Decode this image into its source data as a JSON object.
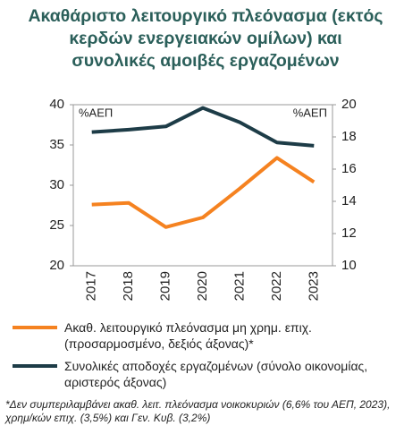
{
  "chart_data": {
    "type": "line",
    "title": "Ακαθάριστο λειτουργικό πλεόνασμα (εκτός κερδών ενεργειακών ομίλων) και συνολικές αμοιβές εργαζομένων",
    "y_label": "%ΑΕΠ",
    "y2_label": "%ΑΕΠ",
    "categories": [
      "2017",
      "2018",
      "2019",
      "2020",
      "2021",
      "2022",
      "2023"
    ],
    "series": [
      {
        "name": "Ακαθ. λειτουργικό πλεόνασμα μη χρημ. επιχ. (προσαρμοσμένο, δεξιός άξονας)*",
        "color": "#f58220",
        "axis": "y2",
        "values": [
          13.8,
          13.9,
          12.4,
          13.0,
          14.8,
          16.7,
          15.2
        ]
      },
      {
        "name": "Συνολικές αποδοχές εργαζομένων (σύνολο οικονομίας, αριστερός άξονας)",
        "color": "#1d3c47",
        "values": [
          36.6,
          36.9,
          37.3,
          39.6,
          37.8,
          35.3,
          34.9
        ]
      }
    ],
    "ylim": [
      20,
      40
    ],
    "yticks": [
      20,
      25,
      30,
      35,
      40
    ],
    "y2lim": [
      10,
      20
    ],
    "y2ticks": [
      10,
      12,
      14,
      16,
      18,
      20
    ],
    "footnote": "*Δεν συμπεριλαμβάνει ακαθ. λειτ. πλεόνασμα νοικοκυριών (6,6% του ΑΕΠ, 2023), χρημ/κών επιχ. (3,5%) και Γεν. Κυβ. (3,2%)"
  }
}
